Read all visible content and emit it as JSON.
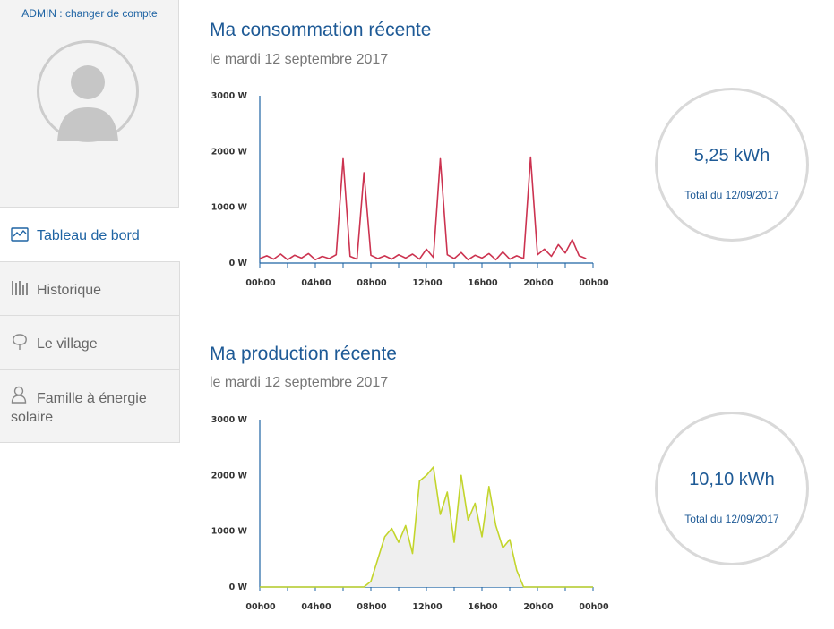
{
  "account": {
    "switch_label": "ADMIN : changer de compte"
  },
  "nav": [
    {
      "label": "Tableau de bord",
      "icon": "dashboard-icon"
    },
    {
      "label": "Historique",
      "icon": "bar-chart-icon"
    },
    {
      "label": "Le village",
      "icon": "tree-icon"
    },
    {
      "label": "Famille à énergie solaire",
      "icon": "person-icon"
    }
  ],
  "colors": {
    "accent": "#1e5a96",
    "consumption": "#cc3350",
    "production": "#c3d52c"
  },
  "consumption": {
    "title": "Ma consommation récente",
    "subtitle": "le mardi 12 septembre 2017",
    "total_value": "5,25 kWh",
    "total_caption": "Total du 12/09/2017"
  },
  "production": {
    "title": "Ma production récente",
    "subtitle": "le mardi 12 septembre 2017",
    "total_value": "10,10 kWh",
    "total_caption": "Total du 12/09/2017"
  },
  "chart_data": [
    {
      "type": "line",
      "x_unit": "hour",
      "x": [
        0,
        0.5,
        1,
        1.5,
        2,
        2.5,
        3,
        3.5,
        4,
        4.5,
        5,
        5.5,
        6,
        6.5,
        7,
        7.5,
        8,
        8.5,
        9,
        9.5,
        10,
        10.5,
        11,
        11.5,
        12,
        12.5,
        13,
        13.5,
        14,
        14.5,
        15,
        15.5,
        16,
        16.5,
        17,
        17.5,
        18,
        18.5,
        19,
        19.5,
        20,
        20.5,
        21,
        21.5,
        22,
        22.5,
        23,
        23.5
      ],
      "values": [
        80,
        130,
        70,
        160,
        60,
        140,
        90,
        170,
        60,
        120,
        80,
        150,
        1870,
        120,
        70,
        1620,
        140,
        80,
        130,
        70,
        150,
        90,
        160,
        70,
        250,
        100,
        1870,
        150,
        80,
        190,
        60,
        140,
        90,
        170,
        60,
        200,
        70,
        130,
        80,
        1900,
        150,
        250,
        120,
        330,
        180,
        420,
        130,
        80
      ],
      "yticks": [
        "0 W",
        "1000 W",
        "2000 W",
        "3000 W"
      ],
      "ylim": [
        0,
        3000
      ],
      "xticks": [
        "00h00",
        "04h00",
        "08h00",
        "12h00",
        "16h00",
        "20h00",
        "00h00"
      ],
      "grid": false
    },
    {
      "type": "area",
      "x_unit": "hour",
      "x": [
        0,
        1,
        2,
        3,
        4,
        5,
        6,
        7,
        7.5,
        8,
        8.5,
        9,
        9.5,
        10,
        10.5,
        11,
        11.5,
        12,
        12.5,
        13,
        13.5,
        14,
        14.5,
        15,
        15.5,
        16,
        16.5,
        17,
        17.5,
        18,
        18.5,
        19,
        20,
        21,
        22,
        23,
        24
      ],
      "values": [
        0,
        0,
        0,
        0,
        0,
        0,
        0,
        0,
        0,
        100,
        500,
        900,
        1050,
        800,
        1100,
        600,
        1900,
        2000,
        2150,
        1300,
        1700,
        800,
        2000,
        1200,
        1500,
        900,
        1800,
        1100,
        700,
        850,
        300,
        0,
        0,
        0,
        0,
        0,
        0
      ],
      "yticks": [
        "0 W",
        "1000 W",
        "2000 W",
        "3000 W"
      ],
      "ylim": [
        0,
        3000
      ],
      "xticks": [
        "00h00",
        "04h00",
        "08h00",
        "12h00",
        "16h00",
        "20h00",
        "00h00"
      ],
      "grid": false
    }
  ]
}
